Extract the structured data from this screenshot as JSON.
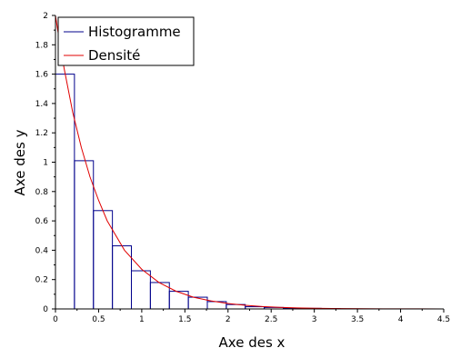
{
  "chart_data": {
    "type": "bar",
    "title": "",
    "xlabel": "Axe des x",
    "ylabel": "Axe des y",
    "xlim": [
      0,
      4.5
    ],
    "ylim": [
      0,
      2
    ],
    "x_ticks": [
      "0",
      "0.5",
      "1",
      "1.5",
      "2",
      "2.5",
      "3",
      "3.5",
      "4",
      "4.5"
    ],
    "y_ticks": [
      "0",
      "0.2",
      "0.4",
      "0.6",
      "0.8",
      "1",
      "1.2",
      "1.4",
      "1.6",
      "1.8",
      "2"
    ],
    "grid": false,
    "legend_position": "top-left",
    "series": [
      {
        "name": "Histogramme",
        "kind": "histogram",
        "color": "#00008b",
        "bin_edges": [
          0,
          0.22,
          0.44,
          0.66,
          0.88,
          1.1,
          1.32,
          1.54,
          1.76,
          1.98,
          2.2,
          2.42,
          2.64,
          2.86,
          3.08,
          3.3
        ],
        "values": [
          1.6,
          1.01,
          0.67,
          0.43,
          0.26,
          0.18,
          0.12,
          0.08,
          0.05,
          0.03,
          0.015,
          0.01,
          0.006,
          0.004,
          0.002
        ]
      },
      {
        "name": "Densité",
        "kind": "line",
        "color": "#e00000",
        "x": [
          0,
          0.05,
          0.1,
          0.2,
          0.3,
          0.4,
          0.5,
          0.6,
          0.8,
          1.0,
          1.2,
          1.4,
          1.6,
          1.8,
          2.0,
          2.2,
          2.4,
          2.6,
          2.8,
          3.0,
          3.2,
          3.4,
          3.6,
          3.8,
          4.0,
          4.2,
          4.5
        ],
        "y": [
          2.0,
          1.81,
          1.64,
          1.34,
          1.1,
          0.9,
          0.74,
          0.6,
          0.4,
          0.27,
          0.18,
          0.12,
          0.08,
          0.055,
          0.037,
          0.025,
          0.016,
          0.011,
          0.007,
          0.005,
          0.003,
          0.002,
          0.0015,
          0.001,
          0.0007,
          0.0005,
          0.0002
        ]
      }
    ]
  }
}
